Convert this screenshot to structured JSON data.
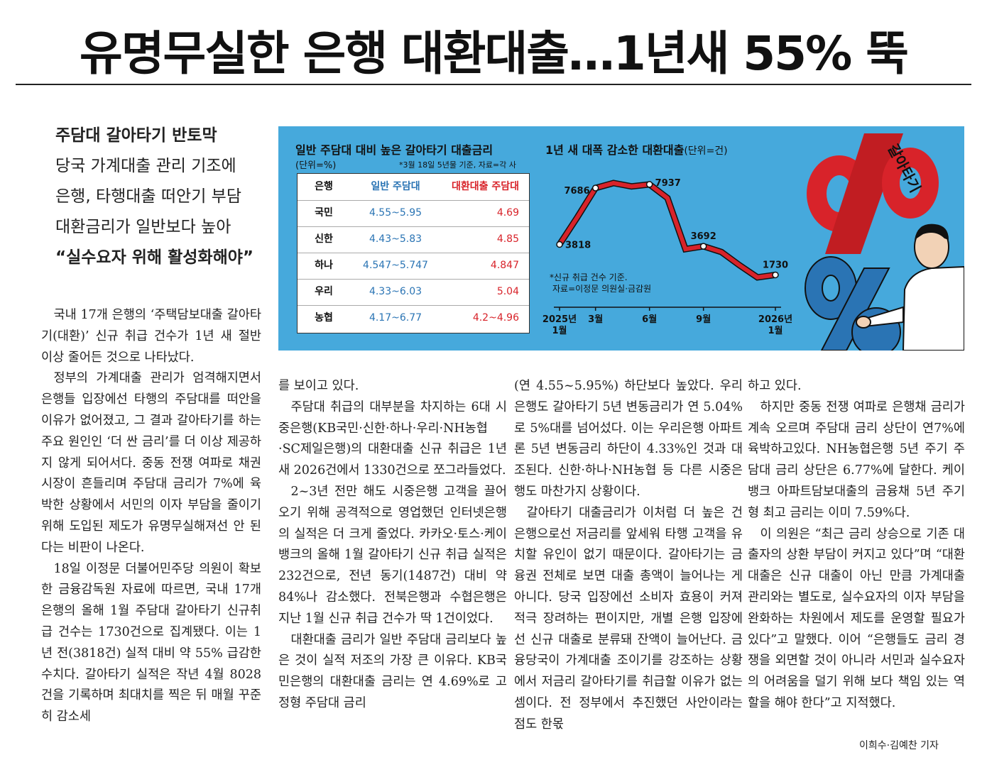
{
  "headline": "유명무실한 은행 대환대출…1년새 55% 뚝",
  "subheads": [
    "주담대 갈아타기 반토막",
    "당국 가계대출 관리 기조에",
    "은행, 타행대출 떠안기 부담",
    "대환금리가 일반보다 높아",
    "“실수요자 위해 활성화해야”"
  ],
  "infographic": {
    "table_title": "일반 주담대 대비 높은 갈아타기 대출금리",
    "table_unit": "(단위=%)",
    "table_note": "*3월 18일 5년물 기준, 자료=각 사",
    "columns": [
      "은행",
      "일반 주담대",
      "대환대출 주담대"
    ],
    "rows": [
      {
        "bank": "국민",
        "general": "4.55~5.95",
        "refinance": "4.69"
      },
      {
        "bank": "신한",
        "general": "4.43~5.83",
        "refinance": "4.85"
      },
      {
        "bank": "하나",
        "general": "4.547~5.747",
        "refinance": "4.847"
      },
      {
        "bank": "우리",
        "general": "4.33~6.03",
        "refinance": "5.04"
      },
      {
        "bank": "농협",
        "general": "4.17~6.77",
        "refinance": "4.2~4.96"
      }
    ],
    "chart_title": "1년 새 대폭 감소한 대환대출",
    "chart_unit": "(단위=건)",
    "chart_note1": "*신규 취급 건수 기준.",
    "chart_note2": "자료=이정문 의원실·금감원",
    "illustration_text": "갈아타기",
    "colors": {
      "background": "#46a9dc",
      "line": "#d8232a",
      "general": "#2a74b4",
      "refinance": "#d8232a"
    }
  },
  "chart_data": {
    "type": "line",
    "title": "1년 새 대폭 감소한 대환대출",
    "ylabel": "",
    "x_ticks": [
      {
        "label": "2025년",
        "label2": "1월",
        "index": 0
      },
      {
        "label": "3월",
        "label2": "",
        "index": 2
      },
      {
        "label": "6월",
        "label2": "",
        "index": 5
      },
      {
        "label": "9월",
        "label2": "",
        "index": 8
      },
      {
        "label": "2026년",
        "label2": "1월",
        "index": 12
      }
    ],
    "series": [
      {
        "values": [
          3818,
          5700,
          7686,
          8028,
          7800,
          7937,
          7000,
          3500,
          3692,
          3300,
          2400,
          1560,
          1730
        ]
      }
    ],
    "data_labels": [
      {
        "index": 0,
        "text": "3818"
      },
      {
        "index": 2,
        "text": "7686"
      },
      {
        "index": 5,
        "text": "7937"
      },
      {
        "index": 8,
        "text": "3692"
      },
      {
        "index": 12,
        "text": "1730"
      }
    ],
    "ylim": [
      0,
      9000
    ],
    "grid": false
  },
  "columns": {
    "a": [
      "국내 17개 은행의 ‘주택담보대출 갈아타기(대환)’ 신규 취급 건수가 1년 새 절반 이상 줄어든 것으로 나타났다.",
      "정부의 가계대출 관리가 엄격해지면서 은행들 입장에선 타행의 주담대를 떠안을 이유가 없어졌고, 그 결과 갈아타기를 하는 주요 원인인 ‘더 싼 금리’를 더 이상 제공하지 않게 되어서다. 중동 전쟁 여파로 채권시장이 흔들리며 주담대 금리가 7%에 육박한 상황에서 서민의 이자 부담을 줄이기 위해 도입된 제도가 유명무실해져선 안 된다는 비판이 나온다.",
      "18일 이정문 더불어민주당 의원이 확보한 금융감독원 자료에 따르면, 국내 17개 은행의 올해 1월 주담대 갈아타기 신규취급 건수는 1730건으로 집계됐다. 이는 1년 전(3818건) 실적 대비 약 55% 급감한 수치다. 갈아타기 실적은 작년 4월 8028건을 기록하며 최대치를 찍은 뒤 매월 꾸준히 감소세"
    ],
    "b": [
      "를 보이고 있다.",
      "주담대 취급의 대부분을 차지하는 6대 시중은행(KB국민·신한·하나·우리·NH농협·SC제일은행)의 대환대출 신규 취급은 1년 새 2026건에서 1330건으로 쪼그라들었다.",
      "2~3년 전만 해도 시중은행 고객을 끌어오기 위해 공격적으로 영업했던 인터넷은행의 실적은 더 크게 줄었다. 카카오·토스·케이뱅크의 올해 1월 갈아타기 신규 취급 실적은 232건으로, 전년 동기(1487건) 대비 약 84%나 감소했다. 전북은행과 수협은행은 지난 1월 신규 취급 건수가 딱 1건이었다.",
      "대환대출 금리가 일반 주담대 금리보다 높은 것이 실적 저조의 가장 큰 이유다. KB국민은행의 대환대출 금리는 연 4.69%로 고정형 주담대 금리"
    ],
    "c": [
      "(연 4.55~5.95%) 하단보다 높았다. 우리은행도 갈아타기 5년 변동금리가 연 5.04%로 5%대를 넘어섰다. 이는 우리은행 아파트론 5년 변동금리 하단이 4.33%인 것과 대조된다. 신한·하나·NH농협 등 다른 시중은행도 마찬가지 상황이다.",
      "갈아타기 대출금리가 이처럼 더 높은 건 은행으로선 저금리를 앞세워 타행 고객을 유치할 유인이 없기 때문이다. 갈아타기는 금융권 전체로 보면 대출 총액이 늘어나는 게 아니다. 당국 입장에선 소비자 효용이 커져 적극 장려하는 편이지만, 개별 은행 입장에선 신규 대출로 분류돼 잔액이 늘어난다. 금융당국이 가계대출 조이기를 강조하는 상황에서 저금리 갈아타기를 취급할 이유가 없는 셈이다. 전 정부에서 추진했던 사안이라는 점도 한몫"
    ],
    "d": [
      "하고 있다.",
      "하지만 중동 전쟁 여파로 은행채 금리가 계속 오르며 주담대 금리 상단이 연7%에 육박하고있다. NH농협은행 5년 주기 주담대 금리 상단은 6.77%에 달한다. 케이뱅크 아파트담보대출의 금융채 5년 주기형 최고 금리는 이미 7.59%다.",
      "이 의원은 “최근 금리 상승으로 기존 대출자의 상환 부담이 커지고 있다”며 “대환대출은 신규 대출이 아닌 만큼 가계대출 관리와는 별도로, 실수요자의 이자 부담을 완화하는 차원에서 제도를 운영할 필요가 있다”고 말했다. 이어 “은행들도 금리 경쟁을 외면할 것이 아니라 서민과 실수요자의 어려움을 덜기 위해 보다 책임 있는 역할을 해야 한다”고 지적했다."
    ]
  },
  "byline": "이희수·김예찬 기자"
}
